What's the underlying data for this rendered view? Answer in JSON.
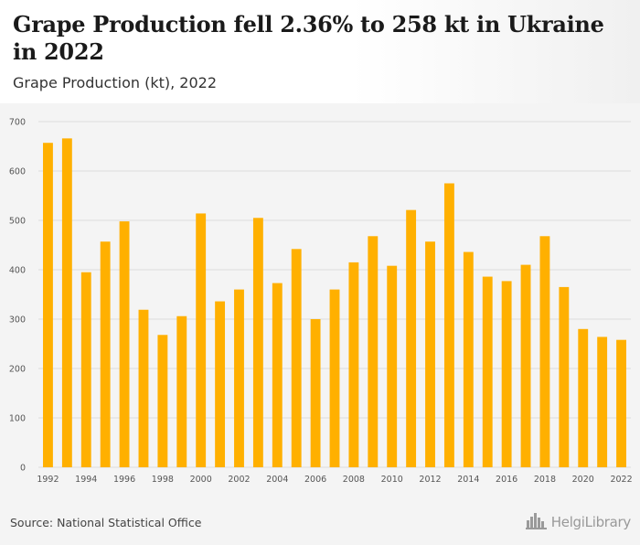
{
  "header": {
    "title": "Grape Production fell 2.36% to 258 kt in Ukraine in 2022",
    "subtitle": "Grape Production (kt), 2022"
  },
  "footer": {
    "source": "Source: National Statistical Office",
    "logo_text": "HelgiLibrary",
    "logo_icon": "city-skyline-icon"
  },
  "colors": {
    "bar": "#FFB000",
    "grid": "#dcdcdc",
    "background": "#f4f4f4"
  },
  "chart_data": {
    "type": "bar",
    "title": "Grape Production fell 2.36% to 258 kt in Ukraine in 2022",
    "subtitle": "Grape Production (kt), 2022",
    "categories": [
      "1992",
      "1993",
      "1994",
      "1995",
      "1996",
      "1997",
      "1998",
      "1999",
      "2000",
      "2001",
      "2002",
      "2003",
      "2004",
      "2005",
      "2006",
      "2007",
      "2008",
      "2009",
      "2010",
      "2011",
      "2012",
      "2013",
      "2014",
      "2015",
      "2016",
      "2017",
      "2018",
      "2019",
      "2020",
      "2021",
      "2022"
    ],
    "x_tick_labels": [
      "1992",
      "1994",
      "1996",
      "1998",
      "2000",
      "2002",
      "2004",
      "2006",
      "2008",
      "2010",
      "2012",
      "2014",
      "2016",
      "2018",
      "2020",
      "2022"
    ],
    "values": [
      657,
      666,
      395,
      457,
      498,
      319,
      268,
      306,
      514,
      336,
      360,
      505,
      373,
      442,
      300,
      360,
      415,
      468,
      408,
      521,
      457,
      575,
      436,
      386,
      377,
      410,
      468,
      365,
      280,
      264,
      258
    ],
    "ylim": [
      0,
      700
    ],
    "y_ticks": [
      0,
      100,
      200,
      300,
      400,
      500,
      600,
      700
    ],
    "grid": true,
    "xlabel": "",
    "ylabel": ""
  }
}
